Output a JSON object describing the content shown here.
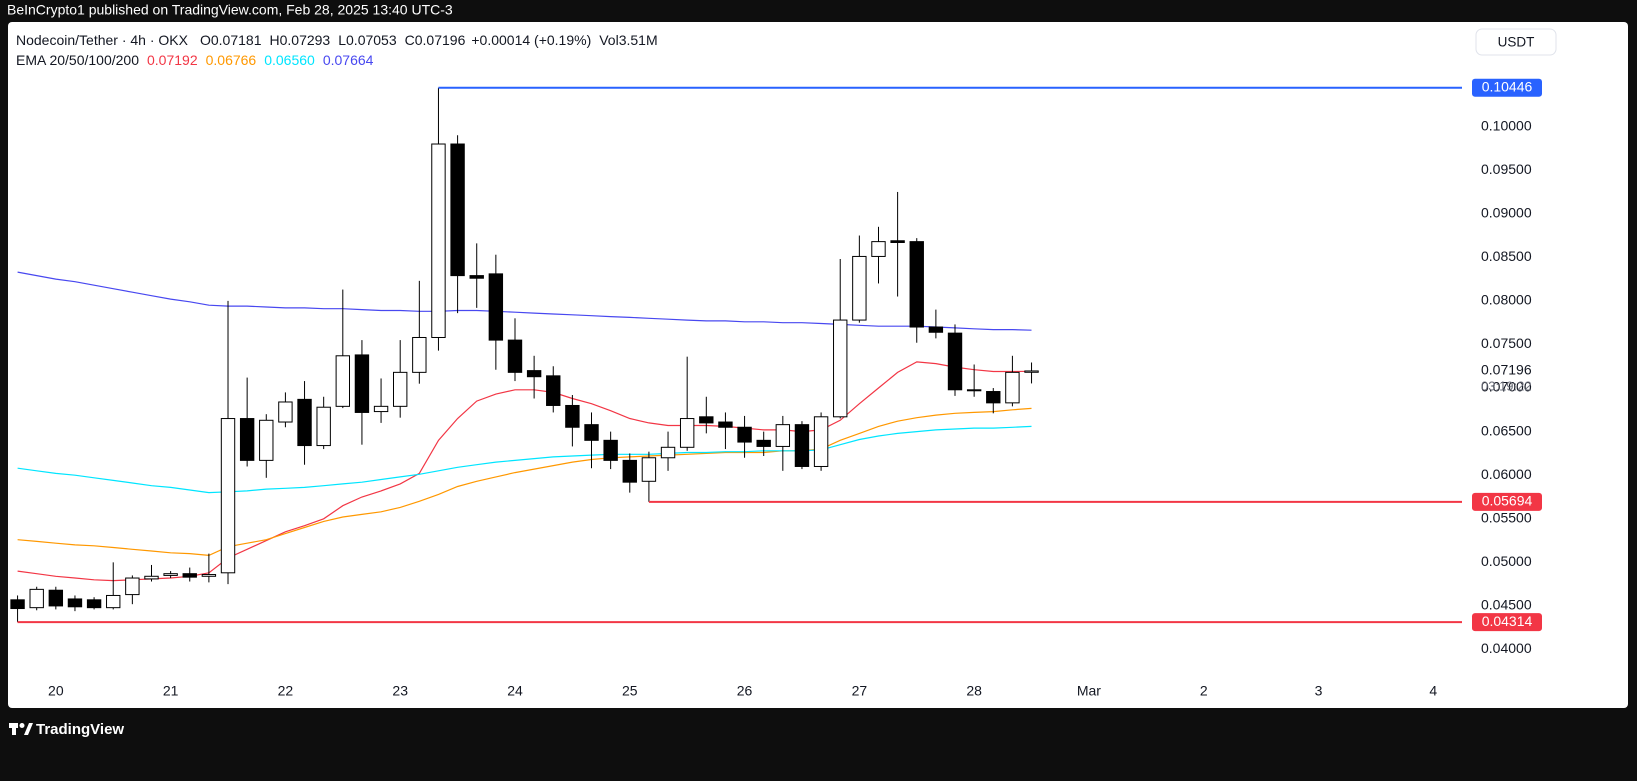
{
  "top_bar": {
    "text": "BeInCrypto1 published on TradingView.com, Feb 28, 2025 13:40 UTC-3"
  },
  "footer": {
    "brand": "TradingView"
  },
  "legend": {
    "symbol": "Nodecoin/Tether · 4h · OKX",
    "ohlc": [
      {
        "key": "O",
        "value": "0.07181"
      },
      {
        "key": "H",
        "value": "0.07293"
      },
      {
        "key": "L",
        "value": "0.07053"
      },
      {
        "key": "C",
        "value": "0.07196"
      }
    ],
    "change": "+0.00014 (+0.19%)",
    "volume": {
      "key": "Vol",
      "value": "3.51M"
    },
    "indicator": "EMA 20/50/100/200",
    "indicator_values": [
      "0.07192",
      "0.06766",
      "0.06560",
      "0.07664"
    ]
  },
  "chart_data": {
    "type": "candlestick",
    "currency": "USDT",
    "countdown": "03:19:22",
    "categories": [
      null,
      null,
      "20",
      null,
      null,
      null,
      null,
      null,
      "21",
      null,
      null,
      null,
      null,
      null,
      "22",
      null,
      null,
      null,
      null,
      null,
      "23",
      null,
      null,
      null,
      null,
      null,
      "24",
      null,
      null,
      null,
      null,
      null,
      "25",
      null,
      null,
      null,
      null,
      null,
      "26",
      null,
      null,
      null,
      null,
      null,
      "27",
      null,
      null,
      null,
      null,
      null,
      "28",
      null,
      null,
      null,
      null,
      null,
      "Mar",
      null,
      null,
      null,
      null,
      null,
      "2",
      null,
      null,
      null,
      null,
      null,
      "3",
      null,
      null,
      null,
      null,
      null,
      "4",
      null
    ],
    "open": [
      0.0457,
      0.0448,
      0.0468,
      0.0458,
      0.0457,
      0.0448,
      0.0463,
      0.0481,
      0.0485,
      0.0487,
      0.0484,
      0.0488,
      0.0665,
      0.0617,
      0.0661,
      0.0687,
      0.0634,
      0.0679,
      0.0738,
      0.0673,
      0.0679,
      0.0718,
      0.0758,
      0.098,
      0.0829,
      0.0831,
      0.0755,
      0.072,
      0.0714,
      0.068,
      0.0658,
      0.064,
      0.0617,
      0.0593,
      0.062,
      0.0632,
      0.0667,
      0.0661,
      0.0655,
      0.064,
      0.0633,
      0.0658,
      0.061,
      0.0667,
      0.0778,
      0.0851,
      0.0869,
      0.0868,
      0.077,
      0.0763,
      0.0698,
      0.0696,
      0.0683,
      0.07181,
      null,
      null,
      null,
      null,
      null,
      null,
      null,
      null,
      null,
      null,
      null,
      null,
      null,
      null,
      null,
      null,
      null,
      null,
      null,
      null,
      null,
      null
    ],
    "high": [
      0.0462,
      0.0472,
      0.0472,
      0.0462,
      0.046,
      0.05,
      0.0485,
      0.0497,
      0.049,
      0.0494,
      0.051,
      0.08,
      0.0712,
      0.067,
      0.0695,
      0.0708,
      0.069,
      0.0813,
      0.0755,
      0.0711,
      0.0755,
      0.0823,
      0.10446,
      0.099,
      0.0866,
      0.0853,
      0.078,
      0.0737,
      0.0725,
      0.0692,
      0.0672,
      0.065,
      0.0625,
      0.0627,
      0.065,
      0.0736,
      0.069,
      0.0672,
      0.0668,
      0.065,
      0.0668,
      0.0662,
      0.0672,
      0.0848,
      0.0875,
      0.0885,
      0.0925,
      0.0872,
      0.079,
      0.0773,
      0.0727,
      0.07,
      0.0737,
      0.07293,
      null,
      null,
      null,
      null,
      null,
      null,
      null,
      null,
      null,
      null,
      null,
      null,
      null,
      null,
      null,
      null,
      null,
      null,
      null,
      null,
      null,
      null
    ],
    "low": [
      0.04314,
      0.0445,
      0.0446,
      0.0444,
      0.0446,
      0.0446,
      0.0452,
      0.0478,
      0.0482,
      0.0478,
      0.0477,
      0.0475,
      0.061,
      0.0597,
      0.0655,
      0.0612,
      0.063,
      0.0677,
      0.0635,
      0.066,
      0.0666,
      0.0705,
      0.0743,
      0.0786,
      0.0792,
      0.0721,
      0.0708,
      0.0688,
      0.0672,
      0.0633,
      0.0608,
      0.0607,
      0.058,
      0.05694,
      0.0605,
      0.0628,
      0.0648,
      0.063,
      0.062,
      0.0622,
      0.0605,
      0.0607,
      0.0605,
      0.0665,
      0.0775,
      0.082,
      0.0805,
      0.0752,
      0.0757,
      0.0691,
      0.069,
      0.0671,
      0.0679,
      0.07053,
      null,
      null,
      null,
      null,
      null,
      null,
      null,
      null,
      null,
      null,
      null,
      null,
      null,
      null,
      null,
      null,
      null,
      null,
      null,
      null,
      null,
      null
    ],
    "close": [
      0.0447,
      0.0469,
      0.045,
      0.0449,
      0.0448,
      0.0462,
      0.0482,
      0.0484,
      0.0487,
      0.0483,
      0.0486,
      0.0665,
      0.0617,
      0.0663,
      0.0684,
      0.0634,
      0.0678,
      0.0737,
      0.0672,
      0.0679,
      0.0718,
      0.0758,
      0.098,
      0.0829,
      0.0826,
      0.0755,
      0.0718,
      0.0713,
      0.068,
      0.0655,
      0.064,
      0.0617,
      0.0592,
      0.062,
      0.0632,
      0.0665,
      0.066,
      0.0655,
      0.0638,
      0.0633,
      0.0658,
      0.061,
      0.0667,
      0.0778,
      0.0851,
      0.0868,
      0.0867,
      0.077,
      0.0764,
      0.0698,
      0.0697,
      0.0683,
      0.0718,
      0.07196,
      null,
      null,
      null,
      null,
      null,
      null,
      null,
      null,
      null,
      null,
      null,
      null,
      null,
      null,
      null,
      null,
      null,
      null,
      null,
      null,
      null,
      null
    ],
    "up_color": "#ffffff",
    "down_color": "#000000",
    "series": [
      {
        "color": "#f23645",
        "values": [
          0.049,
          0.0487,
          0.0484,
          0.0482,
          0.048,
          0.0479,
          0.048,
          0.0481,
          0.0482,
          0.0484,
          0.0488,
          0.0505,
          0.0515,
          0.0525,
          0.0535,
          0.0542,
          0.055,
          0.0565,
          0.0575,
          0.0582,
          0.059,
          0.0602,
          0.064,
          0.0665,
          0.0685,
          0.0693,
          0.0698,
          0.0698,
          0.0695,
          0.0688,
          0.0682,
          0.0674,
          0.0665,
          0.066,
          0.0657,
          0.0657,
          0.0657,
          0.0656,
          0.0654,
          0.0652,
          0.0652,
          0.065,
          0.0652,
          0.0663,
          0.0682,
          0.07,
          0.0718,
          0.073,
          0.0728,
          0.0724,
          0.0721,
          0.0719,
          0.0719,
          0.07192,
          null,
          null,
          null,
          null,
          null,
          null,
          null,
          null,
          null,
          null,
          null,
          null,
          null,
          null,
          null,
          null,
          null,
          null,
          null,
          null,
          null,
          null
        ]
      },
      {
        "color": "#ff9800",
        "values": [
          0.0526,
          0.0524,
          0.0522,
          0.052,
          0.0519,
          0.0517,
          0.0515,
          0.0513,
          0.0511,
          0.051,
          0.0508,
          0.0518,
          0.0522,
          0.0526,
          0.0533,
          0.054,
          0.0547,
          0.0552,
          0.0555,
          0.0558,
          0.0563,
          0.057,
          0.0578,
          0.0587,
          0.0593,
          0.0598,
          0.0603,
          0.0607,
          0.0611,
          0.0615,
          0.0618,
          0.062,
          0.0621,
          0.0622,
          0.0623,
          0.0624,
          0.0625,
          0.0626,
          0.0626,
          0.0626,
          0.0628,
          0.0628,
          0.063,
          0.064,
          0.0648,
          0.0656,
          0.0662,
          0.0666,
          0.0669,
          0.0671,
          0.0672,
          0.0673,
          0.0675,
          0.06766,
          null,
          null,
          null,
          null,
          null,
          null,
          null,
          null,
          null,
          null,
          null,
          null,
          null,
          null,
          null,
          null,
          null,
          null,
          null,
          null,
          null,
          null
        ]
      },
      {
        "color": "#00e5ff",
        "values": [
          0.0608,
          0.0605,
          0.0602,
          0.06,
          0.0597,
          0.0594,
          0.0591,
          0.0588,
          0.0586,
          0.0583,
          0.058,
          0.0581,
          0.0582,
          0.0584,
          0.0585,
          0.0586,
          0.0588,
          0.059,
          0.0592,
          0.0595,
          0.0598,
          0.0601,
          0.0605,
          0.0609,
          0.0612,
          0.0615,
          0.0617,
          0.0619,
          0.0621,
          0.0622,
          0.0623,
          0.0624,
          0.0624,
          0.0624,
          0.0625,
          0.0626,
          0.0626,
          0.0627,
          0.0627,
          0.0628,
          0.0628,
          0.0628,
          0.0629,
          0.0635,
          0.0641,
          0.0645,
          0.0648,
          0.065,
          0.0652,
          0.0653,
          0.0654,
          0.0654,
          0.0655,
          0.0656,
          null,
          null,
          null,
          null,
          null,
          null,
          null,
          null,
          null,
          null,
          null,
          null,
          null,
          null,
          null,
          null,
          null,
          null,
          null,
          null,
          null,
          null
        ]
      },
      {
        "color": "#4848f0",
        "values": [
          0.0833,
          0.0829,
          0.0825,
          0.0822,
          0.0818,
          0.0814,
          0.081,
          0.0806,
          0.0802,
          0.0799,
          0.0795,
          0.0794,
          0.0794,
          0.0793,
          0.0792,
          0.0792,
          0.0791,
          0.0791,
          0.079,
          0.0789,
          0.0789,
          0.0788,
          0.0788,
          0.0789,
          0.0789,
          0.0788,
          0.0787,
          0.0786,
          0.0785,
          0.0784,
          0.0783,
          0.0782,
          0.0781,
          0.078,
          0.0779,
          0.0778,
          0.0777,
          0.0777,
          0.0776,
          0.0776,
          0.0775,
          0.0775,
          0.0774,
          0.0773,
          0.0772,
          0.0771,
          0.0771,
          0.0771,
          0.077,
          0.0769,
          0.0768,
          0.0767,
          0.0767,
          0.07664,
          null,
          null,
          null,
          null,
          null,
          null,
          null,
          null,
          null,
          null,
          null,
          null,
          null,
          null,
          null,
          null,
          null,
          null,
          null,
          null,
          null,
          null
        ]
      }
    ],
    "levels": [
      {
        "value": 0.10446,
        "color": "#2962ff"
      },
      {
        "value": 0.05694,
        "color": "#f23645"
      },
      {
        "value": 0.04314,
        "color": "#f23645"
      }
    ],
    "ylim": [
      0.0365,
      0.112
    ],
    "yticks": [
      {
        "value": 0.04,
        "label": "0.04000"
      },
      {
        "value": 0.045,
        "label": "0.04500"
      },
      {
        "value": 0.05,
        "label": "0.05000"
      },
      {
        "value": 0.055,
        "label": "0.05500"
      },
      {
        "value": 0.06,
        "label": "0.06000"
      },
      {
        "value": 0.065,
        "label": "0.06500"
      },
      {
        "value": 0.07,
        "label": "0.07000"
      },
      {
        "value": 0.075,
        "label": "0.07500"
      },
      {
        "value": 0.08,
        "label": "0.08000"
      },
      {
        "value": 0.085,
        "label": "0.08500"
      },
      {
        "value": 0.09,
        "label": "0.09000"
      },
      {
        "value": 0.095,
        "label": "0.09500"
      },
      {
        "value": 0.1,
        "label": "0.10000"
      }
    ],
    "grid": false
  }
}
